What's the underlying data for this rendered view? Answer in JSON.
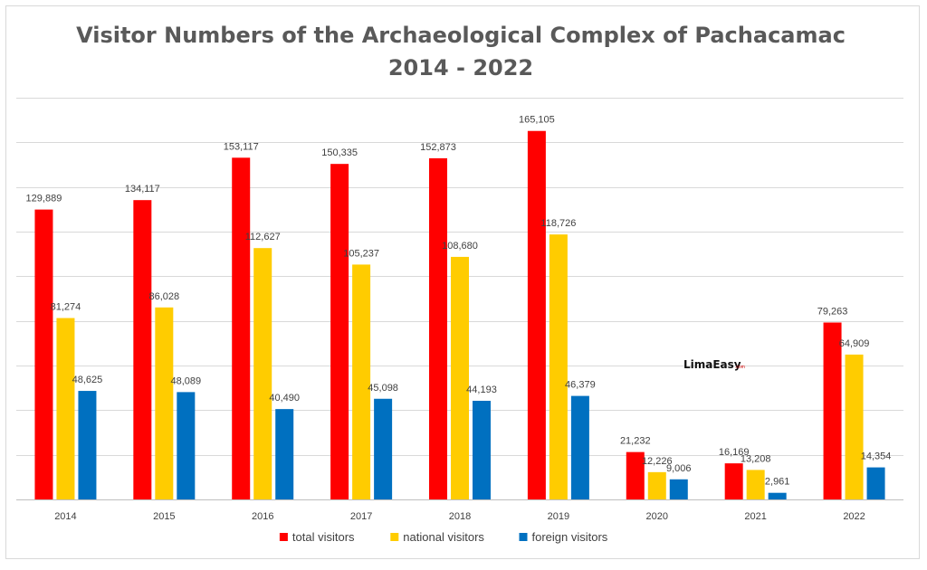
{
  "chart_data": {
    "type": "bar",
    "title": "Visitor Numbers of the Archaeological Complex of Pachacamac",
    "subtitle": "2014 - 2022",
    "categories": [
      "2014",
      "2015",
      "2016",
      "2017",
      "2018",
      "2019",
      "2020",
      "2021",
      "2022"
    ],
    "series": [
      {
        "name": "total visitors",
        "color": "#ff0000",
        "values": [
          129889,
          134117,
          153117,
          150335,
          152873,
          165105,
          21232,
          16169,
          79263
        ],
        "labels": [
          "129,889",
          "134,117",
          "153,117",
          "150,335",
          "152,873",
          "165,105",
          "21,232",
          "16,169",
          "79,263"
        ]
      },
      {
        "name": "national visitors",
        "color": "#ffcc00",
        "values": [
          81274,
          86028,
          112627,
          105237,
          108680,
          118726,
          12226,
          13208,
          64909
        ],
        "labels": [
          "81,274",
          "86,028",
          "112,627",
          "105,237",
          "108,680",
          "118,726",
          "12,226",
          "13,208",
          "64,909"
        ]
      },
      {
        "name": "foreign visitors",
        "color": "#0070c0",
        "values": [
          48625,
          48089,
          40490,
          45098,
          44193,
          46379,
          9006,
          2961,
          14354
        ],
        "labels": [
          "48,625",
          "48,089",
          "40,490",
          "45,098",
          "44,193",
          "46,379",
          "9,006",
          "2,961",
          "14,354"
        ]
      }
    ],
    "ylim": [
      0,
      180000
    ],
    "grid": true,
    "legend": "bottom-center",
    "xlabel": "",
    "ylabel": ""
  },
  "watermark": {
    "text": "LimaEasy",
    "suffix": ".com"
  }
}
